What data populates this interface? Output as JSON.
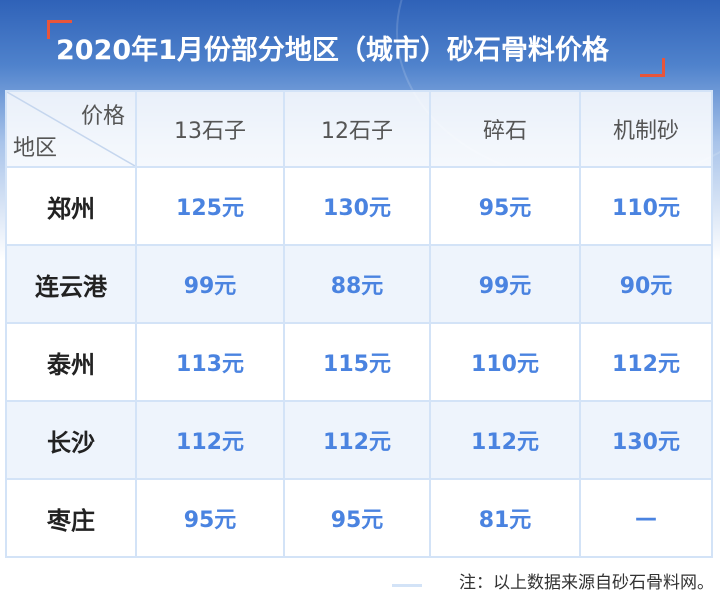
{
  "title": "2020年1月份部分地区（城市）砂石骨料价格",
  "header": {
    "corner_price": "价格",
    "corner_region": "地区",
    "columns": [
      "13石子",
      "12石子",
      "碎石",
      "机制砂"
    ]
  },
  "rows": [
    {
      "city": "郑州",
      "values": [
        "125元",
        "130元",
        "95元",
        "110元"
      ]
    },
    {
      "city": "连云港",
      "values": [
        "99元",
        "88元",
        "99元",
        "90元"
      ]
    },
    {
      "city": "泰州",
      "values": [
        "113元",
        "115元",
        "110元",
        "112元"
      ]
    },
    {
      "city": "长沙",
      "values": [
        "112元",
        "112元",
        "112元",
        "130元"
      ]
    },
    {
      "city": "枣庄",
      "values": [
        "95元",
        "95元",
        "81元",
        "—"
      ]
    }
  ],
  "note": "注：以上数据来源自砂石骨料网。",
  "colors": {
    "value": "#4a83e0",
    "accent": "#e8553a",
    "header_bg": "#2f62b8"
  }
}
